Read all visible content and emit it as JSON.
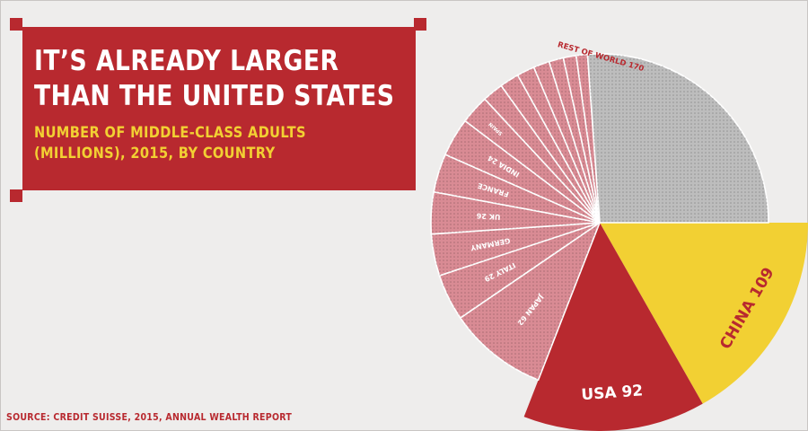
{
  "header": {
    "title_line1": "IT’S ALREADY LARGER",
    "title_line2": "THAN THE UNITED STATES",
    "subtitle_line1": "NUMBER OF MIDDLE-CLASS ADULTS",
    "subtitle_line2": "(MILLIONS), 2015, BY COUNTRY"
  },
  "footer": {
    "source": "SOURCE: CREDIT SUISSE, 2015, ANNUAL WEALTH REPORT"
  },
  "colors": {
    "brand_red": "#b8292f",
    "accent_yellow": "#f2d033",
    "other_pink": "#d98b94",
    "rest_gray": "#bdbdbd",
    "background": "#eeedec"
  },
  "chart_data": {
    "type": "pie",
    "title": "",
    "slices": [
      {
        "label": "CHINA 109",
        "name": "China",
        "value": 109,
        "color": "#f2d033",
        "text_color": "#b8292f",
        "emphasis": "large"
      },
      {
        "label": "USA 92",
        "name": "USA",
        "value": 92,
        "color": "#b8292f",
        "text_color": "#ffffff",
        "emphasis": "large"
      },
      {
        "label": "JAPAN 62",
        "name": "Japan",
        "value": 62,
        "color": "#d98b94",
        "text_color": "#ffffff",
        "emphasis": "small"
      },
      {
        "label": "ITALY 29",
        "name": "Italy",
        "value": 29,
        "color": "#d98b94",
        "text_color": "#ffffff",
        "emphasis": "small"
      },
      {
        "label": "GERMANY",
        "name": "Germany",
        "value": 26,
        "color": "#d98b94",
        "text_color": "#ffffff",
        "emphasis": "small"
      },
      {
        "label": "UK 26",
        "name": "UK",
        "value": 26,
        "color": "#d98b94",
        "text_color": "#ffffff",
        "emphasis": "small"
      },
      {
        "label": "FRANCE",
        "name": "France",
        "value": 24,
        "color": "#d98b94",
        "text_color": "#ffffff",
        "emphasis": "small"
      },
      {
        "label": "INDIA 24",
        "name": "India",
        "value": 24,
        "color": "#d98b94",
        "text_color": "#ffffff",
        "emphasis": "small"
      },
      {
        "label": "SPAIN",
        "name": "Spain",
        "value": 18,
        "color": "#d98b94",
        "text_color": "#ffffff",
        "emphasis": "tiny"
      },
      {
        "label": "",
        "name": "",
        "value": 13,
        "color": "#d98b94",
        "text_color": "#ffffff",
        "emphasis": "tiny"
      },
      {
        "label": "",
        "name": "",
        "value": 12,
        "color": "#d98b94",
        "text_color": "#ffffff",
        "emphasis": "tiny"
      },
      {
        "label": "",
        "name": "",
        "value": 11,
        "color": "#d98b94",
        "text_color": "#ffffff",
        "emphasis": "tiny"
      },
      {
        "label": "",
        "name": "",
        "value": 10,
        "color": "#d98b94",
        "text_color": "#ffffff",
        "emphasis": "tiny"
      },
      {
        "label": "",
        "name": "",
        "value": 9,
        "color": "#d98b94",
        "text_color": "#ffffff",
        "emphasis": "tiny"
      },
      {
        "label": "",
        "name": "",
        "value": 8,
        "color": "#d98b94",
        "text_color": "#ffffff",
        "emphasis": "tiny"
      },
      {
        "label": "",
        "name": "",
        "value": 7,
        "color": "#d98b94",
        "text_color": "#ffffff",
        "emphasis": "tiny"
      },
      {
        "label": "REST OF WORLD 170",
        "name": "Rest of world",
        "value": 170,
        "color": "#bdbdbd",
        "text_color": "#b8292f",
        "emphasis": "outside"
      }
    ]
  }
}
